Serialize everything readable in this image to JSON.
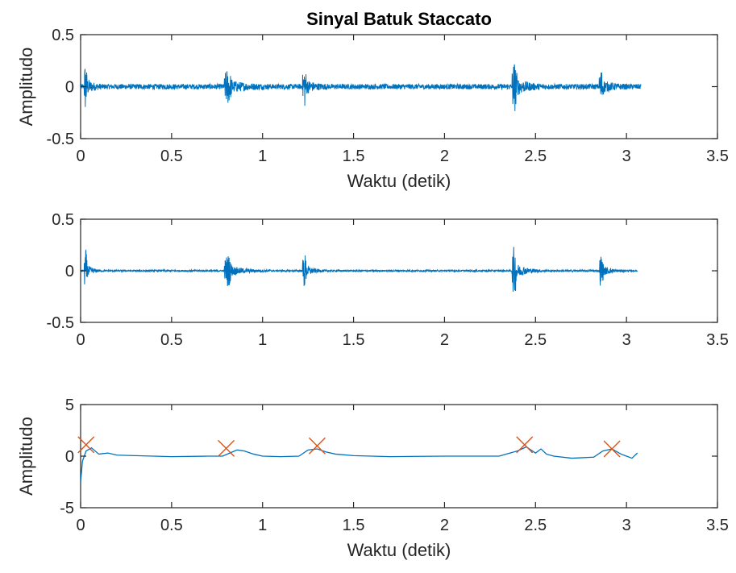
{
  "chart_data": [
    {
      "type": "line",
      "title": "Sinyal Batuk Staccato",
      "xlabel": "Waktu (detik)",
      "ylabel": "Amplitudo",
      "xlim": [
        0,
        3.5
      ],
      "ylim": [
        -0.5,
        0.5
      ],
      "xticks": [
        "0",
        "0.5",
        "1",
        "1.5",
        "2",
        "2.5",
        "3",
        "3.5"
      ],
      "yticks": [
        "-0.5",
        "0",
        "0.5"
      ],
      "grid": false,
      "series_color": "#0072BD",
      "signal_end": 3.08,
      "noise_level": 0.025,
      "bursts": [
        {
          "start": 0.02,
          "end": 0.12,
          "amplitude": 0.3
        },
        {
          "start": 0.79,
          "end": 1.05,
          "amplitude": 0.2
        },
        {
          "start": 1.22,
          "end": 1.36,
          "amplitude": 0.25
        },
        {
          "start": 2.37,
          "end": 2.56,
          "amplitude": 0.3
        },
        {
          "start": 2.85,
          "end": 3.0,
          "amplitude": 0.2
        }
      ]
    },
    {
      "type": "line",
      "title": "",
      "xlabel": "",
      "ylabel": "",
      "xlim": [
        0,
        3.5
      ],
      "ylim": [
        -0.5,
        0.5
      ],
      "xticks": [
        "0",
        "0.5",
        "1",
        "1.5",
        "2",
        "2.5",
        "3",
        "3.5"
      ],
      "yticks": [
        "-0.5",
        "0",
        "0.5"
      ],
      "grid": false,
      "series_color": "#0072BD",
      "signal_end": 3.06,
      "noise_level": 0.008,
      "bursts": [
        {
          "start": 0.02,
          "end": 0.12,
          "amplitude": 0.28
        },
        {
          "start": 0.79,
          "end": 1.05,
          "amplitude": 0.2
        },
        {
          "start": 1.22,
          "end": 1.36,
          "amplitude": 0.23
        },
        {
          "start": 2.37,
          "end": 2.56,
          "amplitude": 0.3
        },
        {
          "start": 2.85,
          "end": 3.0,
          "amplitude": 0.2
        }
      ]
    },
    {
      "type": "line",
      "title": "",
      "xlabel": "Waktu (detik)",
      "ylabel": "Amplitudo",
      "xlim": [
        0,
        3.5
      ],
      "ylim": [
        -5,
        5
      ],
      "xticks": [
        "0",
        "0.5",
        "1",
        "1.5",
        "2",
        "2.5",
        "3",
        "3.5"
      ],
      "yticks": [
        "-5",
        "0",
        "5"
      ],
      "grid": false,
      "series_color": "#0072BD",
      "marker_color": "#D95319",
      "envelope": {
        "x": [
          0,
          0.01,
          0.03,
          0.06,
          0.1,
          0.15,
          0.2,
          0.3,
          0.5,
          0.7,
          0.78,
          0.82,
          0.86,
          0.9,
          0.95,
          1.0,
          1.1,
          1.2,
          1.25,
          1.3,
          1.35,
          1.4,
          1.5,
          1.7,
          2.0,
          2.3,
          2.4,
          2.45,
          2.5,
          2.53,
          2.56,
          2.6,
          2.7,
          2.82,
          2.87,
          2.92,
          2.97,
          3.0,
          3.03,
          3.06
        ],
        "y": [
          -2.5,
          -0.5,
          0.5,
          0.8,
          0.2,
          0.3,
          0.1,
          0.05,
          -0.05,
          0.0,
          0.0,
          0.3,
          0.6,
          0.5,
          0.2,
          0.0,
          -0.05,
          0.0,
          0.6,
          0.7,
          0.4,
          0.2,
          0.05,
          -0.05,
          0.0,
          0.0,
          0.5,
          0.9,
          0.3,
          0.7,
          0.2,
          0.0,
          -0.2,
          -0.1,
          0.5,
          0.7,
          0.2,
          0.0,
          -0.2,
          0.3
        ]
      },
      "peaks": {
        "x": [
          0.03,
          0.8,
          1.3,
          2.44,
          2.92
        ],
        "y": [
          1.1,
          0.75,
          1.0,
          1.1,
          0.7
        ]
      }
    }
  ]
}
